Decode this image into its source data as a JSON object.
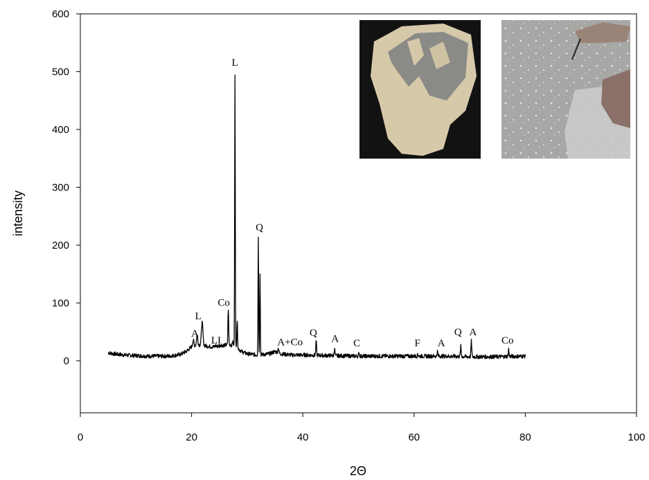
{
  "chart_data": {
    "type": "line",
    "xlabel": "2Θ",
    "ylabel": "intensity",
    "xlim": [
      0,
      100
    ],
    "ylim": [
      -90,
      600
    ],
    "xticks": [
      0,
      20,
      40,
      60,
      80,
      100
    ],
    "yticks": [
      0,
      100,
      200,
      300,
      400,
      500,
      600
    ],
    "grid": false,
    "line_color": "#000000",
    "baseline": [
      [
        5,
        14
      ],
      [
        6,
        12
      ],
      [
        8,
        10
      ],
      [
        10,
        9
      ],
      [
        12,
        8
      ],
      [
        14,
        8
      ],
      [
        16,
        8
      ],
      [
        18,
        11
      ],
      [
        19,
        16
      ],
      [
        20,
        24
      ],
      [
        21,
        28
      ],
      [
        22,
        27
      ],
      [
        23,
        25
      ],
      [
        24,
        24
      ],
      [
        25,
        26
      ],
      [
        26,
        27
      ],
      [
        27,
        28
      ],
      [
        28,
        24
      ],
      [
        29,
        16
      ],
      [
        30,
        12
      ],
      [
        32,
        10
      ],
      [
        34,
        12
      ],
      [
        35,
        16
      ],
      [
        36,
        12
      ],
      [
        38,
        10
      ],
      [
        40,
        10
      ],
      [
        45,
        9
      ],
      [
        50,
        8
      ],
      [
        55,
        8
      ],
      [
        60,
        8
      ],
      [
        65,
        8
      ],
      [
        70,
        7
      ],
      [
        75,
        7
      ],
      [
        80,
        8
      ]
    ],
    "peaks": [
      {
        "x": 20.3,
        "y": 35,
        "w": 0.25
      },
      {
        "x": 21.0,
        "y": 44,
        "w": 0.25
      },
      {
        "x": 21.9,
        "y": 66,
        "w": 0.3
      },
      {
        "x": 24.3,
        "y": 26,
        "w": 0.2
      },
      {
        "x": 25.3,
        "y": 28,
        "w": 0.2
      },
      {
        "x": 26.6,
        "y": 90,
        "w": 0.15
      },
      {
        "x": 27.4,
        "y": 34,
        "w": 0.15
      },
      {
        "x": 27.8,
        "y": 497,
        "w": 0.12
      },
      {
        "x": 28.2,
        "y": 70,
        "w": 0.15
      },
      {
        "x": 32.0,
        "y": 215,
        "w": 0.12
      },
      {
        "x": 32.3,
        "y": 153,
        "w": 0.12
      },
      {
        "x": 35.6,
        "y": 22,
        "w": 0.2
      },
      {
        "x": 42.4,
        "y": 35,
        "w": 0.15
      },
      {
        "x": 45.7,
        "y": 22,
        "w": 0.15
      },
      {
        "x": 50.1,
        "y": 14,
        "w": 0.15
      },
      {
        "x": 60.7,
        "y": 12,
        "w": 0.15
      },
      {
        "x": 64.2,
        "y": 16,
        "w": 0.15
      },
      {
        "x": 68.4,
        "y": 25,
        "w": 0.15
      },
      {
        "x": 70.3,
        "y": 34,
        "w": 0.15
      },
      {
        "x": 77.0,
        "y": 20,
        "w": 0.15
      }
    ],
    "annotations": [
      {
        "label": "L",
        "x": 27.8,
        "y": 510
      },
      {
        "label": "Q",
        "x": 32.2,
        "y": 225
      },
      {
        "label": "Co",
        "x": 25.8,
        "y": 95
      },
      {
        "label": "L",
        "x": 21.2,
        "y": 72
      },
      {
        "label": "A",
        "x": 20.6,
        "y": 42
      },
      {
        "label": "LI",
        "x": 24.4,
        "y": 30
      },
      {
        "label": "A+Co",
        "x": 37.7,
        "y": 27
      },
      {
        "label": "Q",
        "x": 41.9,
        "y": 43
      },
      {
        "label": "A",
        "x": 45.8,
        "y": 33
      },
      {
        "label": "C",
        "x": 49.7,
        "y": 25
      },
      {
        "label": "F",
        "x": 60.6,
        "y": 25
      },
      {
        "label": "A",
        "x": 64.9,
        "y": 25
      },
      {
        "label": "Q",
        "x": 67.9,
        "y": 44
      },
      {
        "label": "A",
        "x": 70.6,
        "y": 44
      },
      {
        "label": "Co",
        "x": 76.8,
        "y": 30
      }
    ]
  },
  "insets": [
    {
      "name": "sample-photo",
      "background": "#111111",
      "body": "#d8ccb0"
    },
    {
      "name": "site-photo",
      "background": "#a8a8a8",
      "body": "#c8c8c8"
    }
  ]
}
